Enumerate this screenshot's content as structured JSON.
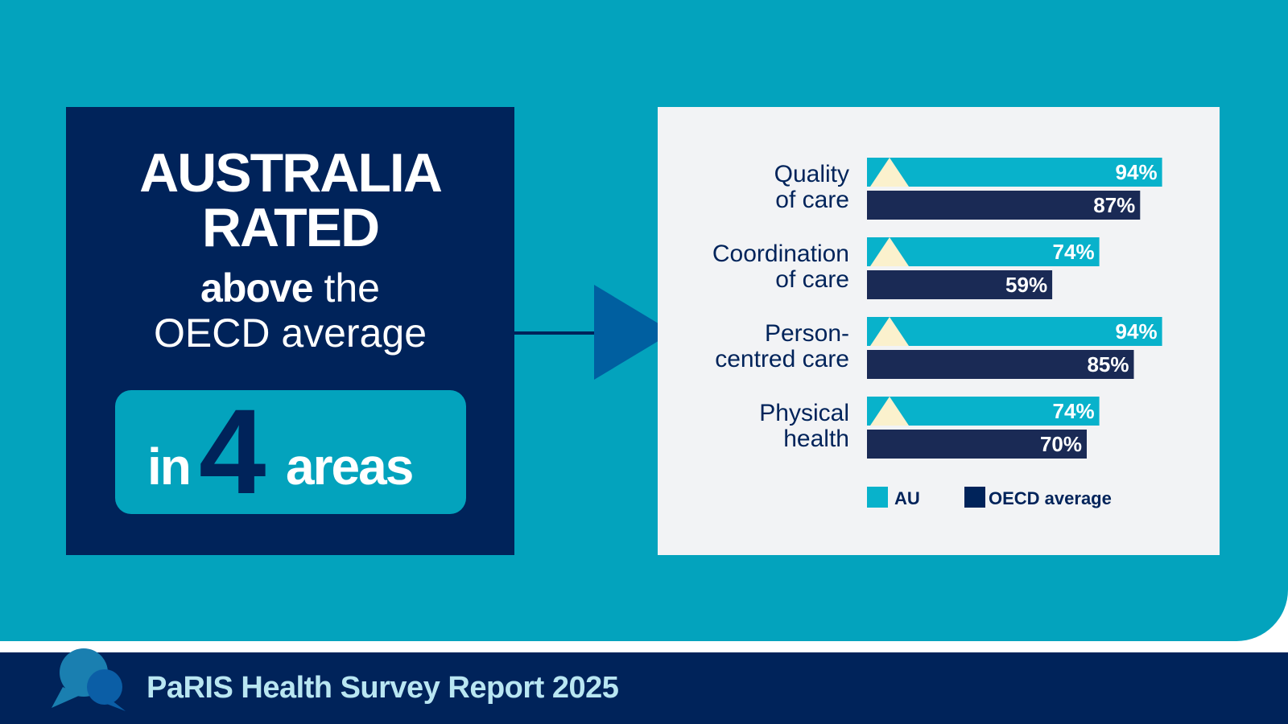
{
  "headline": {
    "line1": "AUSTRALIA",
    "line2": "RATED",
    "line3_bold": "above",
    "line3_rest": " the",
    "line4": "OECD average",
    "pill_in": "in",
    "pill_number": "4",
    "pill_areas": "areas"
  },
  "footer": {
    "title": "PaRIS Health Survey Report 2025",
    "icon": "chat-bubbles-icon"
  },
  "colors": {
    "teal": "#03a3bd",
    "au_bar": "#08b2cb",
    "navy": "#00235a",
    "oecd_bar": "#1a2a55",
    "panel": "#f2f3f5",
    "marker": "#fbf1cd",
    "arrow": "#005fa0"
  },
  "chart_data": {
    "type": "bar",
    "orientation": "horizontal",
    "categories": [
      [
        "Quality",
        "of care"
      ],
      [
        "Coordination",
        "of care"
      ],
      [
        "Person-",
        "centred care"
      ],
      [
        "Physical",
        "health"
      ]
    ],
    "series": [
      {
        "name": "AU",
        "values": [
          94,
          74,
          94,
          74
        ],
        "labels": [
          "94%",
          "74%",
          "94%",
          "74%"
        ]
      },
      {
        "name": "OECD average",
        "values": [
          87,
          59,
          85,
          70
        ],
        "labels": [
          "87%",
          "59%",
          "85%",
          "70%"
        ]
      }
    ],
    "xlim": [
      0,
      100
    ],
    "legend": "bottom",
    "grid": false
  }
}
